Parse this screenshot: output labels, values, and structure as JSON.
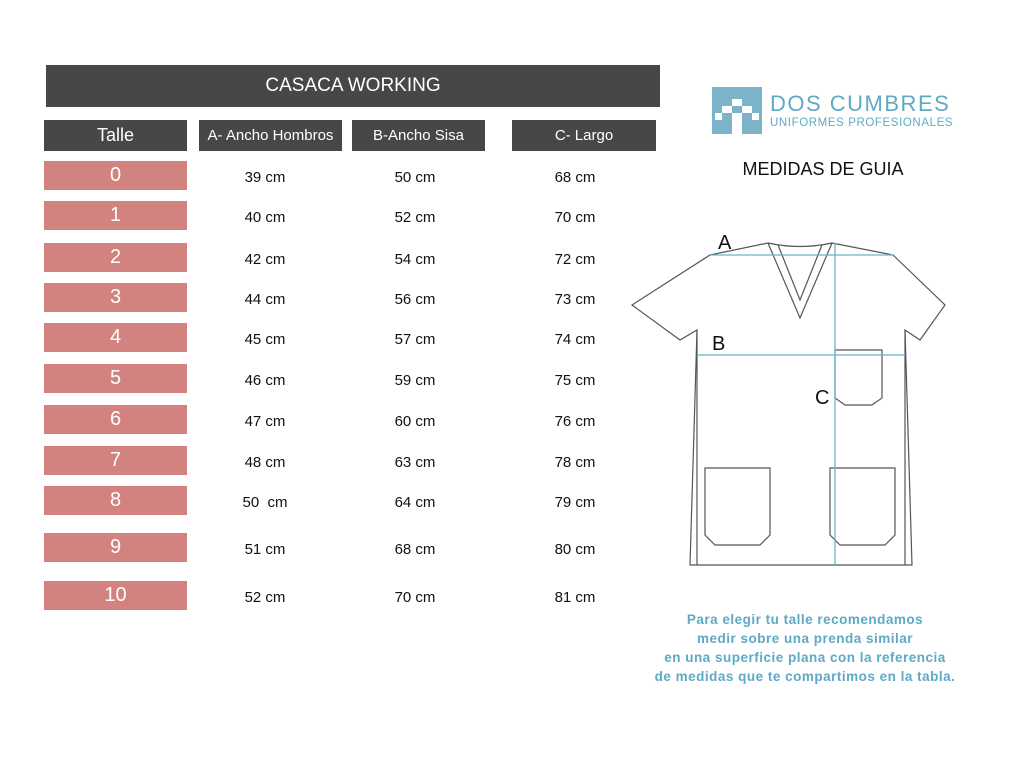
{
  "header": {
    "title": "CASACA WORKING"
  },
  "table": {
    "columns": [
      "Talle",
      "A- Ancho Hombros",
      "B-Ancho Sisa",
      "C- Largo"
    ],
    "rows": [
      [
        "0",
        "39 cm",
        "50 cm",
        "68 cm"
      ],
      [
        "1",
        "40 cm",
        "52 cm",
        "70 cm"
      ],
      [
        "2",
        "42 cm",
        "54 cm",
        "72 cm"
      ],
      [
        "3",
        "44 cm",
        "56 cm",
        "73 cm"
      ],
      [
        "4",
        "45 cm",
        "57 cm",
        "74 cm"
      ],
      [
        "5",
        "46 cm",
        "59 cm",
        "75 cm"
      ],
      [
        "6",
        "47 cm",
        "60 cm",
        "76 cm"
      ],
      [
        "7",
        "48 cm",
        "63 cm",
        "78 cm"
      ],
      [
        "8",
        "50  cm",
        "64 cm",
        "79 cm"
      ],
      [
        "9",
        "51 cm",
        "68 cm",
        "80 cm"
      ],
      [
        "10",
        "52 cm",
        "70 cm",
        "81 cm"
      ]
    ]
  },
  "brand": {
    "name": "DOS CUMBRES",
    "tagline": "UNIFORMES PROFESIONALES"
  },
  "guide": {
    "title": "MEDIDAS DE GUIA",
    "labels": [
      "A",
      "B",
      "C"
    ]
  },
  "note": [
    "Para elegir tu talle recomendamos",
    "medir sobre una prenda similar",
    "en una superficie plana con la referencia",
    "de medidas que te compartimos en la tabla."
  ]
}
